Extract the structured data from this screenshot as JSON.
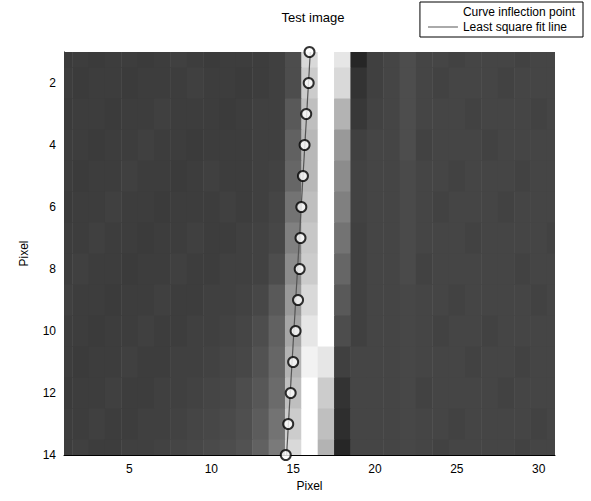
{
  "chart_data": {
    "type": "heatmap",
    "title": "Test image",
    "x_label": "Pixel",
    "y_label": "Pixel",
    "xlim": [
      1,
      31
    ],
    "ylim": [
      14,
      1
    ],
    "xticks": [
      5,
      10,
      15,
      20,
      25,
      30
    ],
    "yticks": [
      2,
      4,
      6,
      8,
      10,
      12,
      14
    ],
    "grid": false,
    "legend": "upper right",
    "cell_x": [
      1,
      2,
      3,
      4,
      5,
      6,
      7,
      8,
      9,
      10,
      11,
      12,
      13,
      14,
      15,
      16,
      17,
      18,
      19,
      20,
      21,
      22,
      23,
      24,
      25,
      26,
      27,
      28,
      29,
      30,
      31
    ],
    "cell_y": [
      1,
      2,
      3,
      4,
      5,
      6,
      7,
      8,
      9,
      10,
      11,
      12,
      13,
      14
    ],
    "cells": [
      [
        0.23,
        0.24,
        0.23,
        0.24,
        0.24,
        0.23,
        0.24,
        0.25,
        0.24,
        0.23,
        0.24,
        0.24,
        0.24,
        0.25,
        0.3,
        0.85,
        1.0,
        0.9,
        0.15,
        0.25,
        0.27,
        0.3,
        0.27,
        0.27,
        0.26,
        0.27,
        0.27,
        0.27,
        0.26,
        0.27,
        0.27
      ],
      [
        0.24,
        0.23,
        0.24,
        0.24,
        0.23,
        0.24,
        0.24,
        0.24,
        0.25,
        0.24,
        0.24,
        0.23,
        0.24,
        0.25,
        0.3,
        0.8,
        1.0,
        0.85,
        0.2,
        0.25,
        0.27,
        0.3,
        0.27,
        0.26,
        0.27,
        0.27,
        0.27,
        0.26,
        0.27,
        0.27,
        0.27
      ],
      [
        0.23,
        0.24,
        0.24,
        0.23,
        0.24,
        0.24,
        0.25,
        0.24,
        0.24,
        0.24,
        0.23,
        0.24,
        0.25,
        0.25,
        0.35,
        0.75,
        1.0,
        0.7,
        0.22,
        0.26,
        0.27,
        0.3,
        0.27,
        0.27,
        0.27,
        0.26,
        0.27,
        0.27,
        0.27,
        0.26,
        0.27
      ],
      [
        0.24,
        0.24,
        0.23,
        0.24,
        0.24,
        0.25,
        0.24,
        0.24,
        0.23,
        0.24,
        0.24,
        0.24,
        0.25,
        0.25,
        0.38,
        0.72,
        1.0,
        0.6,
        0.25,
        0.27,
        0.27,
        0.3,
        0.26,
        0.27,
        0.27,
        0.27,
        0.26,
        0.27,
        0.27,
        0.27,
        0.27
      ],
      [
        0.24,
        0.23,
        0.24,
        0.24,
        0.25,
        0.24,
        0.24,
        0.23,
        0.24,
        0.25,
        0.24,
        0.24,
        0.25,
        0.26,
        0.4,
        0.72,
        1.0,
        0.55,
        0.26,
        0.27,
        0.27,
        0.29,
        0.27,
        0.27,
        0.26,
        0.27,
        0.27,
        0.27,
        0.26,
        0.27,
        0.27
      ],
      [
        0.23,
        0.24,
        0.24,
        0.25,
        0.24,
        0.24,
        0.23,
        0.24,
        0.24,
        0.24,
        0.25,
        0.24,
        0.25,
        0.27,
        0.45,
        0.75,
        1.0,
        0.5,
        0.26,
        0.27,
        0.27,
        0.29,
        0.27,
        0.26,
        0.27,
        0.27,
        0.27,
        0.26,
        0.27,
        0.27,
        0.27
      ],
      [
        0.24,
        0.24,
        0.25,
        0.24,
        0.24,
        0.23,
        0.24,
        0.24,
        0.25,
        0.24,
        0.24,
        0.25,
        0.26,
        0.28,
        0.5,
        0.78,
        1.0,
        0.45,
        0.25,
        0.27,
        0.27,
        0.29,
        0.27,
        0.27,
        0.27,
        0.26,
        0.27,
        0.27,
        0.27,
        0.27,
        0.26
      ],
      [
        0.24,
        0.25,
        0.24,
        0.24,
        0.23,
        0.24,
        0.24,
        0.25,
        0.24,
        0.24,
        0.25,
        0.25,
        0.26,
        0.3,
        0.55,
        0.8,
        1.0,
        0.4,
        0.25,
        0.27,
        0.27,
        0.29,
        0.26,
        0.27,
        0.27,
        0.27,
        0.27,
        0.27,
        0.26,
        0.27,
        0.27
      ],
      [
        0.25,
        0.24,
        0.24,
        0.23,
        0.24,
        0.24,
        0.25,
        0.24,
        0.24,
        0.25,
        0.25,
        0.26,
        0.28,
        0.35,
        0.6,
        0.85,
        1.0,
        0.35,
        0.25,
        0.27,
        0.27,
        0.28,
        0.27,
        0.27,
        0.26,
        0.27,
        0.27,
        0.27,
        0.27,
        0.26,
        0.27
      ],
      [
        0.24,
        0.24,
        0.23,
        0.24,
        0.24,
        0.25,
        0.24,
        0.24,
        0.25,
        0.25,
        0.26,
        0.27,
        0.3,
        0.38,
        0.65,
        0.9,
        1.0,
        0.3,
        0.25,
        0.27,
        0.27,
        0.28,
        0.27,
        0.26,
        0.27,
        0.27,
        0.26,
        0.27,
        0.27,
        0.27,
        0.27
      ],
      [
        0.24,
        0.23,
        0.24,
        0.24,
        0.25,
        0.24,
        0.24,
        0.25,
        0.25,
        0.26,
        0.27,
        0.28,
        0.32,
        0.4,
        0.7,
        0.95,
        0.9,
        0.25,
        0.27,
        0.27,
        0.27,
        0.28,
        0.27,
        0.27,
        0.27,
        0.26,
        0.27,
        0.27,
        0.26,
        0.27,
        0.27
      ],
      [
        0.23,
        0.24,
        0.24,
        0.25,
        0.24,
        0.24,
        0.25,
        0.25,
        0.26,
        0.27,
        0.28,
        0.3,
        0.34,
        0.42,
        0.75,
        1.0,
        0.8,
        0.2,
        0.27,
        0.27,
        0.27,
        0.28,
        0.26,
        0.27,
        0.27,
        0.27,
        0.27,
        0.26,
        0.27,
        0.27,
        0.27
      ],
      [
        0.24,
        0.24,
        0.25,
        0.24,
        0.24,
        0.25,
        0.25,
        0.26,
        0.27,
        0.28,
        0.29,
        0.31,
        0.36,
        0.45,
        0.8,
        1.0,
        0.75,
        0.18,
        0.27,
        0.27,
        0.27,
        0.28,
        0.27,
        0.27,
        0.26,
        0.27,
        0.27,
        0.27,
        0.27,
        0.26,
        0.27
      ],
      [
        0.24,
        0.25,
        0.24,
        0.24,
        0.25,
        0.25,
        0.26,
        0.27,
        0.28,
        0.29,
        0.3,
        0.32,
        0.38,
        0.48,
        0.85,
        1.0,
        0.7,
        0.15,
        0.27,
        0.27,
        0.27,
        0.28,
        0.27,
        0.26,
        0.27,
        0.27,
        0.27,
        0.27,
        0.26,
        0.27,
        0.27
      ]
    ],
    "series": [
      {
        "name": "Curve inflection point",
        "type": "scatter",
        "marker": "circle",
        "color": "#000000",
        "x": [
          16.0,
          15.95,
          15.8,
          15.7,
          15.6,
          15.5,
          15.45,
          15.4,
          15.3,
          15.15,
          15.0,
          14.85,
          14.7,
          14.55
        ],
        "y": [
          1,
          2,
          3,
          4,
          5,
          6,
          7,
          8,
          9,
          10,
          11,
          12,
          13,
          14
        ]
      },
      {
        "name": "Least square fit line",
        "type": "line",
        "line_style": "solid",
        "color": "#555555",
        "x": [
          16.05,
          14.6
        ],
        "y": [
          1,
          14
        ]
      }
    ]
  }
}
